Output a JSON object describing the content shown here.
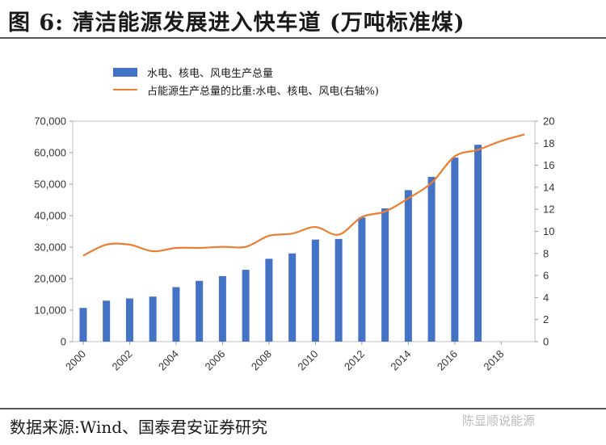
{
  "figure_title": "图 6:  清洁能源发展进入快车道 (万吨标准煤)",
  "source_text": "数据来源:Wind、国泰君安证券研究",
  "watermark_text": "陈显顺说能源",
  "chart_data": {
    "type": "bar",
    "title": "",
    "xlabel": "",
    "ylabel": "",
    "legend_position": "top-left",
    "grid": false,
    "x": [
      2000,
      2001,
      2002,
      2003,
      2004,
      2005,
      2006,
      2007,
      2008,
      2009,
      2010,
      2011,
      2012,
      2013,
      2014,
      2015,
      2016,
      2017,
      2018,
      2019
    ],
    "x_tick_labels": [
      "2000",
      "2002",
      "2004",
      "2006",
      "2008",
      "2010",
      "2012",
      "2014",
      "2016",
      "2018"
    ],
    "x_tick_values": [
      2000,
      2002,
      2004,
      2006,
      2008,
      2010,
      2012,
      2014,
      2016,
      2018
    ],
    "y_left": {
      "min": 0,
      "max": 70000,
      "ticks": [
        "0",
        "10,000",
        "20,000",
        "30,000",
        "40,000",
        "50,000",
        "60,000",
        "70,000"
      ]
    },
    "y_right": {
      "min": 0,
      "max": 20,
      "ticks": [
        "0",
        "2",
        "4",
        "6",
        "8",
        "10",
        "12",
        "14",
        "16",
        "18",
        "20"
      ]
    },
    "series": [
      {
        "name": "水电、核电、风电生产总量",
        "type": "bar",
        "axis": "left",
        "color": "#4472c4",
        "x": [
          2000,
          2001,
          2002,
          2003,
          2004,
          2005,
          2006,
          2007,
          2008,
          2009,
          2010,
          2011,
          2012,
          2013,
          2014,
          2015,
          2016,
          2017
        ],
        "values": [
          10700,
          13000,
          13700,
          14300,
          17300,
          19300,
          20800,
          22800,
          26300,
          28000,
          32400,
          32600,
          39400,
          42300,
          48100,
          52300,
          58400,
          62500
        ]
      },
      {
        "name": "占能源生产总量的比重:水电、核电、风电(右轴%)",
        "type": "line",
        "axis": "right",
        "color": "#ed7d31",
        "x": [
          2000,
          2001,
          2002,
          2003,
          2004,
          2005,
          2006,
          2007,
          2008,
          2009,
          2010,
          2011,
          2012,
          2013,
          2014,
          2015,
          2016,
          2017,
          2018,
          2019
        ],
        "values": [
          7.8,
          8.8,
          8.8,
          8.2,
          8.5,
          8.5,
          8.6,
          8.6,
          9.6,
          9.8,
          10.4,
          9.7,
          11.3,
          11.8,
          13.0,
          14.4,
          16.8,
          17.4,
          18.2,
          18.8
        ]
      }
    ]
  }
}
